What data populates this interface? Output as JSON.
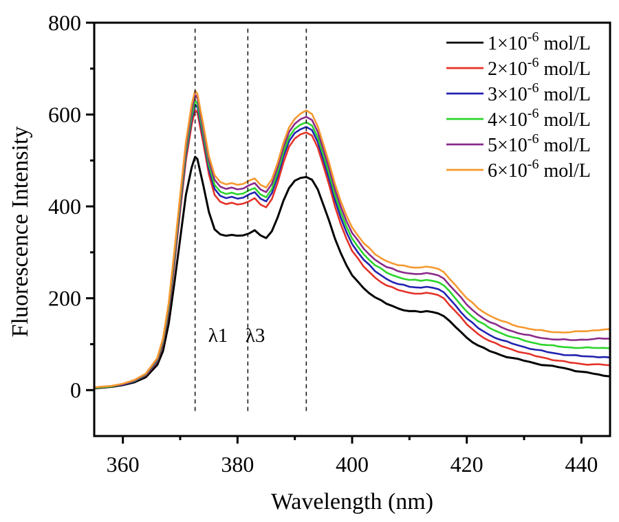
{
  "chart_data": {
    "type": "line",
    "title": "",
    "xlabel": "Wavelength (nm)",
    "ylabel": "Fluorescence Intensity",
    "xlim": [
      355,
      445
    ],
    "ylim": [
      -100,
      800
    ],
    "x_major_ticks": [
      360,
      380,
      400,
      420,
      440
    ],
    "x_minor_ticks": [
      370,
      390,
      410,
      430
    ],
    "y_major_ticks": [
      0,
      200,
      400,
      600,
      800
    ],
    "y_minor_ticks": [
      100,
      300,
      500,
      700
    ],
    "grid": false,
    "legend_position": "top-right",
    "x": [
      355,
      358,
      360,
      362,
      364,
      366,
      367,
      368,
      369,
      370,
      371,
      372,
      372.6,
      373,
      374,
      375,
      376,
      377,
      378,
      379,
      380,
      381,
      382,
      383,
      384,
      385,
      386,
      387,
      388,
      389,
      390,
      391,
      392,
      393,
      394,
      395,
      396,
      397,
      398,
      399,
      400,
      402,
      404,
      406,
      408,
      410,
      412,
      413,
      414,
      415,
      416,
      418,
      420,
      422,
      424,
      426,
      428,
      430,
      432,
      434,
      436,
      438,
      440,
      442,
      444,
      445
    ],
    "series": [
      {
        "name": "1×10-6 mol/L",
        "legend_base": "1×10",
        "legend_sup": "-6",
        "legend_rest": " mol/L",
        "color": "#000000",
        "values": [
          4,
          7,
          11,
          17,
          28,
          55,
          85,
          145,
          235,
          330,
          425,
          485,
          508,
          503,
          448,
          388,
          350,
          339,
          336,
          338,
          336,
          337,
          341,
          348,
          337,
          331,
          346,
          376,
          412,
          440,
          456,
          462,
          464,
          458,
          437,
          403,
          368,
          330,
          299,
          272,
          250,
          222,
          202,
          188,
          178,
          172,
          170,
          172,
          170,
          167,
          161,
          138,
          114,
          97,
          85,
          76,
          70,
          64,
          58,
          54,
          50,
          45,
          40,
          36,
          31,
          30
        ]
      },
      {
        "name": "2×10-6 mol/L",
        "legend_base": "2×10",
        "legend_sup": "-6",
        "legend_rest": " mol/L",
        "color": "#e53228",
        "values": [
          5,
          8,
          12,
          19,
          32,
          62,
          100,
          170,
          275,
          390,
          500,
          578,
          610,
          604,
          540,
          470,
          425,
          410,
          405,
          408,
          404,
          406,
          411,
          418,
          404,
          398,
          416,
          452,
          495,
          530,
          548,
          557,
          561,
          554,
          528,
          488,
          446,
          400,
          362,
          330,
          303,
          269,
          245,
          228,
          218,
          212,
          210,
          212,
          210,
          207,
          200,
          172,
          143,
          122,
          107,
          96,
          88,
          81,
          74,
          69,
          64,
          60,
          57,
          56,
          55,
          54
        ]
      },
      {
        "name": "3×10-6 mol/L",
        "legend_base": "3×10",
        "legend_sup": "-6",
        "legend_rest": " mol/L",
        "color": "#2222b0",
        "values": [
          5,
          8,
          12,
          19,
          33,
          64,
          103,
          175,
          283,
          400,
          512,
          590,
          622,
          616,
          552,
          482,
          438,
          423,
          418,
          421,
          417,
          419,
          426,
          431,
          417,
          411,
          429,
          465,
          508,
          542,
          560,
          568,
          573,
          566,
          540,
          501,
          459,
          414,
          376,
          344,
          318,
          284,
          259,
          242,
          231,
          225,
          223,
          225,
          223,
          220,
          213,
          185,
          156,
          135,
          120,
          109,
          101,
          94,
          88,
          83,
          79,
          76,
          74,
          73,
          72,
          71
        ]
      },
      {
        "name": "4×10-6 mol/L",
        "legend_base": "4×10",
        "legend_sup": "-6",
        "legend_rest": " mol/L",
        "color": "#2cd42c",
        "values": [
          5,
          8,
          13,
          20,
          34,
          66,
          106,
          180,
          290,
          408,
          520,
          598,
          630,
          624,
          560,
          490,
          447,
          432,
          427,
          430,
          426,
          428,
          435,
          440,
          426,
          420,
          438,
          474,
          517,
          551,
          569,
          578,
          583,
          576,
          550,
          511,
          470,
          425,
          388,
          356,
          330,
          296,
          272,
          256,
          246,
          240,
          238,
          240,
          238,
          235,
          228,
          200,
          171,
          150,
          135,
          124,
          115,
          108,
          102,
          98,
          95,
          93,
          92,
          92,
          92,
          91
        ]
      },
      {
        "name": "5×10-6 mol/L",
        "legend_base": "5×10",
        "legend_sup": "-6",
        "legend_rest": " mol/L",
        "color": "#8a2a8a",
        "values": [
          6,
          9,
          13,
          21,
          35,
          68,
          110,
          186,
          298,
          417,
          530,
          610,
          643,
          636,
          570,
          500,
          458,
          443,
          438,
          441,
          437,
          439,
          446,
          451,
          437,
          431,
          449,
          485,
          528,
          562,
          580,
          590,
          595,
          588,
          562,
          523,
          482,
          437,
          400,
          368,
          342,
          308,
          284,
          268,
          259,
          254,
          253,
          255,
          253,
          250,
          243,
          215,
          186,
          164,
          148,
          137,
          128,
          121,
          116,
          112,
          110,
          109,
          110,
          111,
          112,
          112
        ]
      },
      {
        "name": "6×10-6 mol/L",
        "legend_base": "6×10",
        "legend_sup": "-6",
        "legend_rest": " mol/L",
        "color": "#f5992e",
        "values": [
          6,
          9,
          14,
          22,
          36,
          70,
          113,
          190,
          305,
          425,
          540,
          622,
          652,
          645,
          580,
          510,
          468,
          453,
          448,
          451,
          447,
          449,
          456,
          461,
          447,
          441,
          459,
          495,
          538,
          572,
          591,
          602,
          609,
          601,
          574,
          535,
          494,
          449,
          412,
          380,
          354,
          320,
          296,
          281,
          272,
          268,
          267,
          269,
          267,
          264,
          257,
          229,
          200,
          178,
          162,
          151,
          142,
          136,
          131,
          128,
          126,
          126,
          128,
          130,
          132,
          133
        ]
      }
    ],
    "annotations": {
      "dashed_lines_nm": [
        372.6,
        381.8,
        392.0
      ],
      "dashed_line_y_range": [
        -48,
        787
      ],
      "labels": [
        {
          "text": "λ1",
          "x_nm": 376.6,
          "y": 120
        },
        {
          "text": "λ3",
          "x_nm": 383.1,
          "y": 120
        }
      ]
    },
    "frame_color": "#000000"
  }
}
